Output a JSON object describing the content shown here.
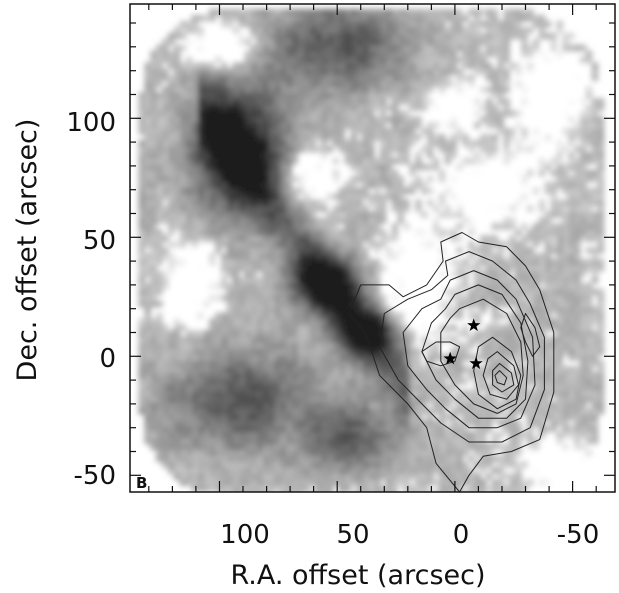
{
  "chart_data": {
    "type": "heatmap",
    "panel_label": "B",
    "xlabel": "R.A. offset (arcsec)",
    "ylabel": "Dec. offset (arcsec)",
    "xlim": [
      138,
      -68
    ],
    "ylim": [
      -57,
      148
    ],
    "x_ticks": [
      100,
      50,
      0,
      -50
    ],
    "y_ticks": [
      100,
      50,
      0,
      -50
    ],
    "x_tick_labels": [
      "100",
      "50",
      "0",
      "-50"
    ],
    "y_tick_labels": [
      "100",
      "50",
      "0",
      "-50"
    ],
    "colors": {
      "map": "#1a1a1a",
      "contour": "#222222",
      "axis": "#111111"
    },
    "map_extent": {
      "x_range": [
        133,
        -62
      ],
      "y_range": [
        -58,
        145
      ],
      "corner_radius_arcsec": 35
    },
    "emission_features": [
      {
        "name": "north-east ridge",
        "x": 92,
        "y": 88,
        "sx": 14,
        "sy": 18,
        "peak": 0.75
      },
      {
        "name": "central ridge",
        "x": 55,
        "y": 30,
        "sx": 10,
        "sy": 8,
        "peak": 0.8
      },
      {
        "name": "ridge near origin",
        "x": 38,
        "y": 10,
        "sx": 9,
        "sy": 7,
        "peak": 0.75
      },
      {
        "name": "north cloud",
        "x": 50,
        "y": 130,
        "sx": 20,
        "sy": 12,
        "peak": 0.45
      },
      {
        "name": "south-east patch",
        "x": 92,
        "y": -18,
        "sx": 22,
        "sy": 14,
        "peak": 0.45
      },
      {
        "name": "south patch",
        "x": 45,
        "y": -35,
        "sx": 14,
        "sy": 10,
        "peak": 0.4
      }
    ],
    "contours": [
      {
        "level": 1,
        "points": [
          [
            6,
            48
          ],
          [
            -3,
            52
          ],
          [
            -10,
            48
          ],
          [
            -22,
            46
          ],
          [
            -30,
            38
          ],
          [
            -36,
            28
          ],
          [
            -42,
            10
          ],
          [
            -42,
            -15
          ],
          [
            -36,
            -35
          ],
          [
            -24,
            -40
          ],
          [
            -12,
            -42
          ],
          [
            -6,
            -50
          ],
          [
            -2,
            -57
          ],
          [
            8,
            -45
          ],
          [
            12,
            -30
          ],
          [
            20,
            -20
          ],
          [
            32,
            -8
          ],
          [
            38,
            10
          ],
          [
            45,
            18
          ],
          [
            40,
            30
          ],
          [
            28,
            30
          ],
          [
            22,
            25
          ],
          [
            12,
            30
          ],
          [
            5,
            40
          ]
        ]
      },
      {
        "level": 2,
        "points": [
          [
            4,
            40
          ],
          [
            -6,
            44
          ],
          [
            -16,
            40
          ],
          [
            -26,
            32
          ],
          [
            -32,
            22
          ],
          [
            -38,
            8
          ],
          [
            -38,
            -14
          ],
          [
            -32,
            -30
          ],
          [
            -20,
            -36
          ],
          [
            -6,
            -36
          ],
          [
            6,
            -28
          ],
          [
            14,
            -20
          ],
          [
            24,
            -10
          ],
          [
            32,
            4
          ],
          [
            30,
            18
          ],
          [
            20,
            24
          ],
          [
            10,
            28
          ],
          [
            3,
            34
          ]
        ]
      },
      {
        "level": 3,
        "points": [
          [
            2,
            32
          ],
          [
            -8,
            36
          ],
          [
            -18,
            32
          ],
          [
            -26,
            24
          ],
          [
            -33,
            8
          ],
          [
            -34,
            -12
          ],
          [
            -28,
            -26
          ],
          [
            -18,
            -30
          ],
          [
            -6,
            -30
          ],
          [
            4,
            -22
          ],
          [
            12,
            -14
          ],
          [
            20,
            -4
          ],
          [
            22,
            10
          ],
          [
            14,
            20
          ],
          [
            6,
            24
          ]
        ]
      },
      {
        "level": 4,
        "points": [
          [
            0,
            26
          ],
          [
            -10,
            30
          ],
          [
            -20,
            26
          ],
          [
            -28,
            14
          ],
          [
            -31,
            -2
          ],
          [
            -30,
            -18
          ],
          [
            -22,
            -26
          ],
          [
            -10,
            -26
          ],
          [
            0,
            -18
          ],
          [
            8,
            -10
          ],
          [
            14,
            2
          ],
          [
            10,
            14
          ],
          [
            4,
            20
          ]
        ]
      },
      {
        "level": 5,
        "points": [
          [
            -2,
            20
          ],
          [
            -12,
            24
          ],
          [
            -22,
            18
          ],
          [
            -28,
            6
          ],
          [
            -29,
            -8
          ],
          [
            -26,
            -20
          ],
          [
            -18,
            -24
          ],
          [
            -8,
            -20
          ],
          [
            0,
            -12
          ],
          [
            6,
            -2
          ],
          [
            6,
            10
          ],
          [
            2,
            16
          ]
        ]
      },
      {
        "level": 6,
        "points": [
          [
            -16,
            8
          ],
          [
            -24,
            2
          ],
          [
            -28,
            -8
          ],
          [
            -26,
            -18
          ],
          [
            -18,
            -22
          ],
          [
            -10,
            -16
          ],
          [
            -8,
            -6
          ],
          [
            -10,
            4
          ]
        ]
      },
      {
        "level": 7,
        "points": [
          [
            -18,
            2
          ],
          [
            -25,
            -4
          ],
          [
            -27,
            -12
          ],
          [
            -22,
            -18
          ],
          [
            -15,
            -16
          ],
          [
            -12,
            -8
          ],
          [
            -14,
            -1
          ]
        ]
      },
      {
        "level": 8,
        "points": [
          [
            -19,
            -3
          ],
          [
            -24,
            -7
          ],
          [
            -25,
            -12
          ],
          [
            -20,
            -15
          ],
          [
            -16,
            -12
          ],
          [
            -16,
            -6
          ]
        ]
      },
      {
        "level": 9,
        "points": [
          [
            -19,
            -6
          ],
          [
            -22,
            -9
          ],
          [
            -21,
            -12
          ],
          [
            -18,
            -11
          ],
          [
            -17,
            -8
          ]
        ]
      },
      {
        "level": 10,
        "points": [
          [
            14,
            2
          ],
          [
            8,
            6
          ],
          [
            2,
            6
          ],
          [
            -2,
            4
          ],
          [
            0,
            -2
          ],
          [
            6,
            -4
          ],
          [
            12,
            -2
          ]
        ]
      },
      {
        "level": 11,
        "points": [
          [
            -30,
            18
          ],
          [
            -34,
            12
          ],
          [
            -36,
            4
          ],
          [
            -33,
            0
          ],
          [
            -30,
            6
          ],
          [
            -28,
            12
          ]
        ]
      }
    ],
    "stars": [
      {
        "name": "source 1",
        "x": 2,
        "y": -1
      },
      {
        "name": "source 2",
        "x": -8,
        "y": 13
      },
      {
        "name": "source 3",
        "x": -9,
        "y": -3
      }
    ]
  }
}
